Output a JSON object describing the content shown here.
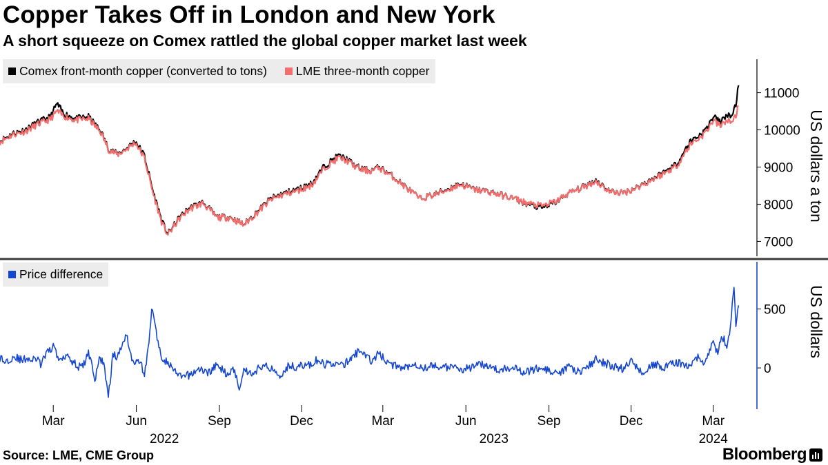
{
  "title": "Copper Takes Off in London and New York",
  "subtitle": "A short squeeze on Comex rattled the global copper market last week",
  "source": "Source: LME, CME Group",
  "brand": "Bloomberg",
  "colors": {
    "comex": "#000000",
    "lme": "#f46e6e",
    "diff": "#1546d0",
    "divider": "#3a3a3a"
  },
  "chart_data": [
    {
      "type": "line",
      "panel": "top",
      "ylabel": "US dollars a ton",
      "ylim": [
        6600,
        11900
      ],
      "yticks": [
        7000,
        8000,
        9000,
        10000,
        11000
      ],
      "xlim": [
        0,
        820
      ],
      "x_unit": "calendar days since 2022-01-01",
      "series": [
        {
          "name": "Comex front-month copper (converted to tons)",
          "key": "comex",
          "x": [
            0,
            14,
            28,
            42,
            56,
            63,
            70,
            84,
            98,
            112,
            120,
            130,
            140,
            150,
            160,
            170,
            180,
            186,
            192,
            199,
            210,
            225,
            240,
            255,
            270,
            285,
            300,
            315,
            330,
            345,
            360,
            375,
            385,
            392,
            400,
            410,
            420,
            435,
            450,
            465,
            480,
            495,
            510,
            525,
            540,
            555,
            570,
            585,
            600,
            615,
            630,
            645,
            660,
            675,
            690,
            705,
            720,
            735,
            750,
            765,
            780,
            790,
            798,
            804,
            810,
            815,
            818
          ],
          "values": [
            9700,
            9900,
            10000,
            10200,
            10350,
            10700,
            10450,
            10300,
            10350,
            9950,
            9500,
            9350,
            9500,
            9700,
            9300,
            8300,
            7500,
            7200,
            7400,
            7650,
            7900,
            8050,
            7650,
            7650,
            7450,
            7800,
            8150,
            8300,
            8400,
            8550,
            9050,
            9300,
            9200,
            9050,
            8950,
            8900,
            9000,
            8750,
            8450,
            8150,
            8250,
            8400,
            8550,
            8400,
            8350,
            8250,
            8150,
            8000,
            7900,
            8050,
            8300,
            8450,
            8650,
            8350,
            8300,
            8450,
            8650,
            8850,
            9100,
            9700,
            9950,
            10350,
            10200,
            10400,
            10350,
            10700,
            11200
          ]
        },
        {
          "name": "LME three-month copper",
          "key": "lme",
          "x": [
            0,
            14,
            28,
            42,
            56,
            63,
            70,
            84,
            98,
            112,
            120,
            130,
            140,
            150,
            160,
            170,
            180,
            186,
            192,
            199,
            210,
            225,
            240,
            255,
            270,
            285,
            300,
            315,
            330,
            345,
            360,
            375,
            385,
            392,
            400,
            410,
            420,
            435,
            450,
            465,
            480,
            495,
            510,
            525,
            540,
            555,
            570,
            585,
            600,
            615,
            630,
            645,
            660,
            675,
            690,
            705,
            720,
            735,
            750,
            765,
            780,
            790,
            798,
            804,
            810,
            815,
            818
          ],
          "values": [
            9680,
            9870,
            9960,
            10150,
            10290,
            10500,
            10380,
            10260,
            10300,
            9920,
            9480,
            9330,
            9480,
            9660,
            9240,
            8250,
            7450,
            7180,
            7380,
            7620,
            7870,
            8030,
            7640,
            7640,
            7440,
            7780,
            8120,
            8270,
            8360,
            8510,
            8990,
            9250,
            9160,
            9030,
            8930,
            8890,
            8980,
            8740,
            8440,
            8150,
            8240,
            8380,
            8530,
            8390,
            8340,
            8240,
            8150,
            8020,
            7950,
            8070,
            8300,
            8440,
            8620,
            8340,
            8300,
            8440,
            8630,
            8820,
            9050,
            9620,
            9880,
            10250,
            10100,
            10250,
            10200,
            10400,
            10650
          ]
        }
      ],
      "legend": [
        "Comex front-month copper (converted to tons)",
        "LME three-month copper"
      ],
      "legend_placement": "top-left"
    },
    {
      "type": "line",
      "panel": "bottom",
      "ylabel": "US dollars",
      "ylim": [
        -350,
        900
      ],
      "yticks": [
        0,
        500
      ],
      "series": [
        {
          "name": "Price difference",
          "key": "diff",
          "x": [
            0,
            5,
            10,
            15,
            20,
            25,
            30,
            35,
            40,
            45,
            50,
            55,
            60,
            62,
            64,
            66,
            70,
            75,
            80,
            85,
            90,
            95,
            98,
            102,
            105,
            110,
            115,
            120,
            125,
            130,
            135,
            140,
            145,
            150,
            155,
            160,
            162,
            164,
            168,
            172,
            178,
            185,
            192,
            200,
            210,
            220,
            230,
            240,
            250,
            255,
            260,
            265,
            270,
            280,
            290,
            300,
            310,
            320,
            330,
            340,
            345,
            350,
            360,
            370,
            380,
            390,
            400,
            410,
            420,
            430,
            440,
            450,
            460,
            470,
            480,
            490,
            500,
            510,
            520,
            530,
            540,
            550,
            560,
            570,
            580,
            590,
            600,
            610,
            620,
            630,
            640,
            650,
            660,
            670,
            680,
            690,
            700,
            710,
            720,
            730,
            735,
            740,
            745,
            750,
            760,
            765,
            770,
            775,
            780,
            785,
            790,
            795,
            800,
            805,
            808,
            810,
            813,
            815,
            818
          ],
          "values": [
            90,
            50,
            70,
            100,
            80,
            60,
            90,
            60,
            80,
            30,
            100,
            150,
            200,
            120,
            90,
            60,
            100,
            120,
            60,
            20,
            0,
            60,
            130,
            40,
            -120,
            80,
            50,
            -260,
            120,
            80,
            200,
            300,
            100,
            40,
            60,
            -50,
            40,
            150,
            500,
            350,
            100,
            50,
            -20,
            -80,
            -60,
            -10,
            -40,
            20,
            -40,
            -30,
            -20,
            -170,
            -10,
            -50,
            20,
            0,
            -60,
            20,
            10,
            30,
            20,
            60,
            30,
            40,
            20,
            90,
            160,
            60,
            120,
            40,
            10,
            10,
            40,
            0,
            20,
            10,
            0,
            -10,
            0,
            20,
            30,
            -20,
            -10,
            20,
            -40,
            -20,
            10,
            -40,
            -60,
            20,
            -30,
            0,
            70,
            40,
            10,
            -10,
            60,
            -40,
            20,
            30,
            -10,
            20,
            50,
            40,
            30,
            -10,
            80,
            100,
            20,
            140,
            200,
            140,
            260,
            200,
            300,
            450,
            680,
            350,
            530
          ]
        }
      ],
      "legend": [
        "Price difference"
      ],
      "legend_placement": "top-left"
    }
  ],
  "x_axis": {
    "month_ticks": [
      {
        "label": "Mar",
        "x": 59
      },
      {
        "label": "Jun",
        "x": 151
      },
      {
        "label": "Sep",
        "x": 243
      },
      {
        "label": "Dec",
        "x": 334
      },
      {
        "label": "Mar",
        "x": 424
      },
      {
        "label": "Jun",
        "x": 516
      },
      {
        "label": "Sep",
        "x": 608
      },
      {
        "label": "Dec",
        "x": 699
      },
      {
        "label": "Mar",
        "x": 790
      }
    ],
    "year_labels": [
      {
        "label": "2022",
        "x": 182
      },
      {
        "label": "2023",
        "x": 547
      },
      {
        "label": "2024",
        "x": 790
      }
    ]
  }
}
